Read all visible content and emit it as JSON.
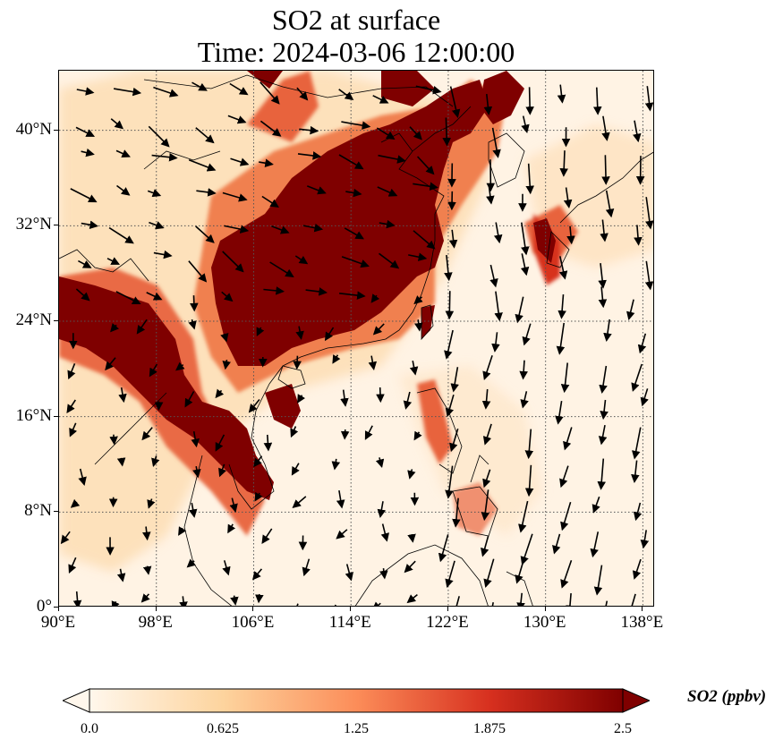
{
  "title": {
    "line1": "SO2 at surface",
    "line2": "Time: 2024-03-06 12:00:00"
  },
  "map": {
    "lon_range": [
      90,
      139
    ],
    "lat_range": [
      0,
      45
    ],
    "lon_ticks": [
      "90°E",
      "98°E",
      "106°E",
      "114°E",
      "122°E",
      "130°E",
      "138°E"
    ],
    "lat_ticks": [
      "0°",
      "8°N",
      "16°N",
      "24°N",
      "32°N",
      "40°N"
    ],
    "gridlines": true,
    "field": "SO2 concentration shaded, wind vectors overlaid"
  },
  "colorbar": {
    "label": "SO2 (ppbv)",
    "ticks": [
      "0.0",
      "0.625",
      "1.25",
      "1.875",
      "2.5"
    ],
    "range": [
      0.0,
      2.5
    ],
    "extend": "both",
    "colormap": "OrRd",
    "colors": [
      "#fff7ec",
      "#fdd49e",
      "#fc8d59",
      "#d7301f",
      "#7f0000"
    ]
  }
}
